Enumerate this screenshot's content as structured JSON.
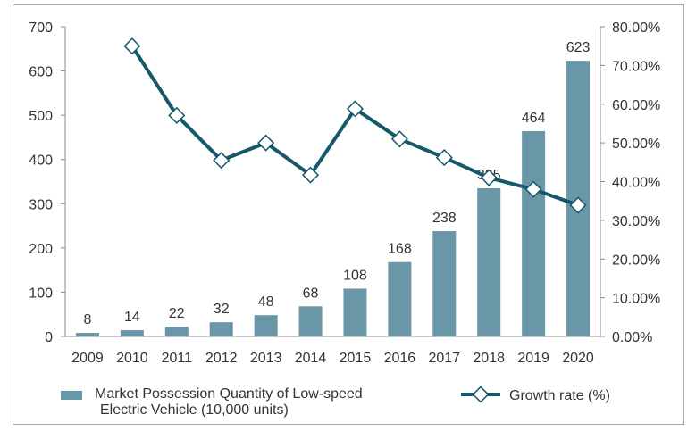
{
  "chart_data": {
    "type": "bar",
    "categories": [
      "2009",
      "2010",
      "2011",
      "2012",
      "2013",
      "2014",
      "2015",
      "2016",
      "2017",
      "2018",
      "2019",
      "2020"
    ],
    "series": [
      {
        "name": "Market Possession Quantity of Low-speed Electric Vehicle (10,000 units)",
        "type": "bar",
        "axis": "left",
        "values": [
          8,
          14,
          22,
          32,
          48,
          68,
          108,
          168,
          238,
          335,
          464,
          623
        ],
        "labels": [
          "8",
          "14",
          "22",
          "32",
          "48",
          "68",
          "108",
          "168",
          "238",
          "335",
          "464",
          "623"
        ]
      },
      {
        "name": "Growth rate (%)",
        "type": "line",
        "axis": "right",
        "values": [
          null,
          75.0,
          57.1,
          45.5,
          50.0,
          41.7,
          58.8,
          51.0,
          46.2,
          41.0,
          38.0,
          33.9
        ]
      }
    ],
    "y_left": {
      "range": [
        0,
        700
      ],
      "ticks": [
        "0",
        "100",
        "200",
        "300",
        "400",
        "500",
        "600",
        "700"
      ]
    },
    "y_right": {
      "range": [
        0,
        80
      ],
      "ticks": [
        "0.00%",
        "10.00%",
        "20.00%",
        "30.00%",
        "40.00%",
        "50.00%",
        "60.00%",
        "70.00%",
        "80.00%"
      ]
    },
    "legend": {
      "position": "bottom",
      "bar_label_lines": [
        "Market Possession Quantity of Low-speed",
        "Electric Vehicle (10,000 units)"
      ],
      "line_label": "Growth rate (%)"
    },
    "grid": false,
    "colors": {
      "bar": "#6a97a8",
      "line": "#15576b",
      "marker_fill": "#ffffff"
    }
  }
}
